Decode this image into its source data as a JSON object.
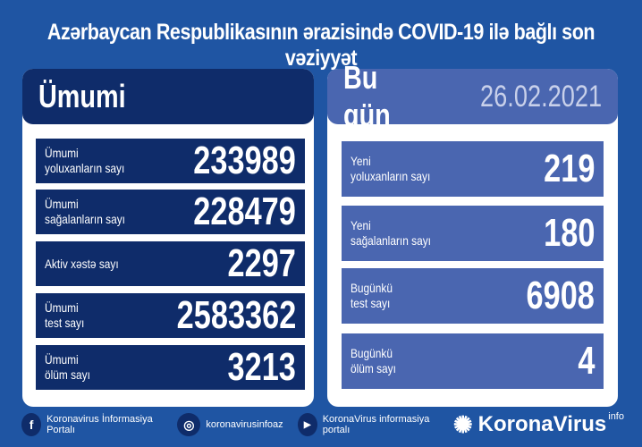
{
  "title": "Azərbaycan Respublikasının ərazisində COVID-19 ilə bağlı son vəziyyət",
  "total": {
    "heading": "Ümumi",
    "items": [
      {
        "label1": "Ümumi",
        "label2": "yoluxanların sayı",
        "value": "233989"
      },
      {
        "label1": "Ümumi",
        "label2": "sağalanların sayı",
        "value": "228479"
      },
      {
        "label1": "Aktiv xəstə sayı",
        "label2": "",
        "value": "2297"
      },
      {
        "label1": "Ümumi",
        "label2": "test sayı",
        "value": "2583362"
      },
      {
        "label1": "Ümumi",
        "label2": "ölüm sayı",
        "value": "3213"
      }
    ]
  },
  "today": {
    "heading": "Bu gün",
    "date": "26.02.2021",
    "items": [
      {
        "label1": "Yeni",
        "label2": "yoluxanların sayı",
        "value": "219"
      },
      {
        "label1": "Yeni",
        "label2": "sağalanların sayı",
        "value": "180"
      },
      {
        "label1": "Bugünkü",
        "label2": "test sayı",
        "value": "6908"
      },
      {
        "label1": "Bugünkü",
        "label2": "ölüm sayı",
        "value": "4"
      }
    ]
  },
  "footer": {
    "facebook": "Koronavirus İnformasiya Portalı",
    "instagram": "koronavirusinfoaz",
    "youtube": "KoronaVirus informasiya portalı",
    "brand": "KoronaVirus",
    "brand_sup": "info",
    "icons": {
      "facebook": "facebook-icon",
      "instagram": "instagram-icon",
      "youtube": "youtube-icon",
      "brand": "virus-logo-icon"
    }
  },
  "colors": {
    "background": "#1f55a3",
    "navy": "#0f2c6a",
    "today_blue": "#4a66b0"
  }
}
